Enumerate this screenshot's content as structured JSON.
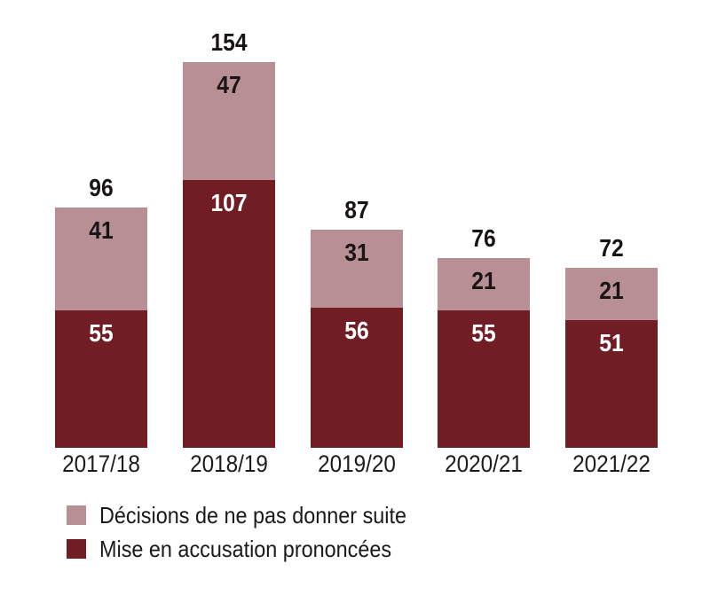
{
  "chart_data": {
    "type": "bar",
    "stacked": true,
    "title": "",
    "xlabel": "",
    "ylabel": "",
    "grid": false,
    "ylim": [
      0,
      160
    ],
    "legend_position": "bottom-left",
    "categories": [
      "2017/18",
      "2018/19",
      "2019/20",
      "2020/21",
      "2021/22"
    ],
    "series": [
      {
        "name": "Décisions de ne pas donner suite",
        "color": "#b78f94",
        "label_color": "#191516",
        "stack_position": "top",
        "values": [
          41,
          47,
          31,
          21,
          21
        ]
      },
      {
        "name": "Mise en accusation prononcées",
        "color": "#701d23",
        "label_color": "#ffffff",
        "stack_position": "bottom",
        "values": [
          55,
          107,
          56,
          55,
          51
        ]
      }
    ],
    "totals": [
      96,
      154,
      87,
      76,
      72
    ]
  },
  "legend": {
    "items": [
      {
        "label": "Décisions de ne pas donner suite",
        "color": "#b78f94"
      },
      {
        "label": "Mise en accusation prononcées",
        "color": "#701d23"
      }
    ]
  },
  "colors": {
    "background": "#ffffff",
    "text": "#1a1a1a",
    "value_label_on_dark": "#ffffff",
    "value_label_on_light": "#191516"
  }
}
